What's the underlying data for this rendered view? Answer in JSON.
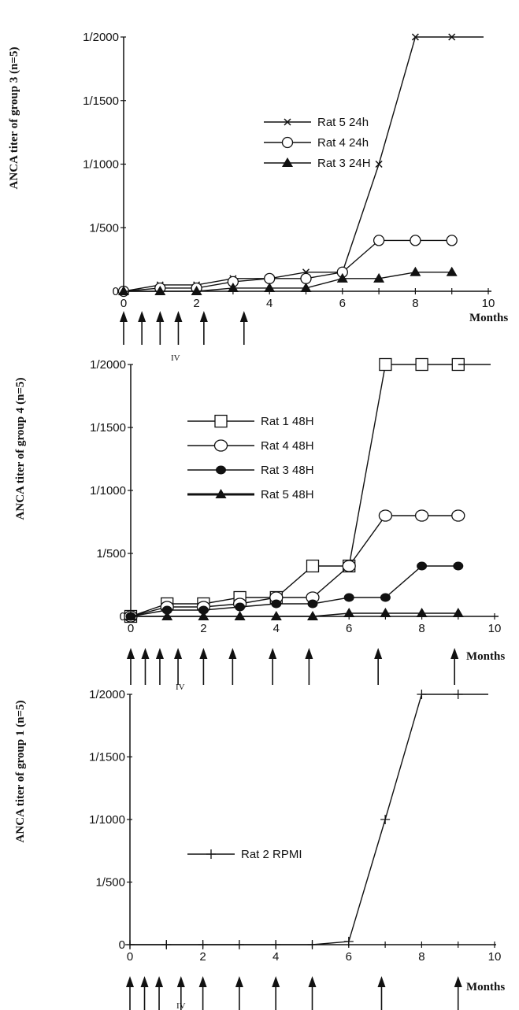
{
  "chart_data": [
    {
      "type": "line",
      "panel": "group3",
      "ylabel": "ANCA titer of group 3 (n=5)",
      "xlabel": "Months",
      "xlim": [
        0,
        10
      ],
      "xticks": [
        0,
        2,
        4,
        6,
        8,
        10
      ],
      "ylim": [
        0,
        2000
      ],
      "yticks": [
        {
          "value": 0,
          "label": "0"
        },
        {
          "value": 500,
          "label": "1/500"
        },
        {
          "value": 1000,
          "label": "1/1000"
        },
        {
          "value": 1500,
          "label": "1/1500"
        },
        {
          "value": 2000,
          "label": "1/2000"
        }
      ],
      "series": [
        {
          "name": "Rat 5 24h",
          "marker": "x",
          "x": [
            0,
            1,
            2,
            3,
            4,
            5,
            6,
            7,
            8,
            9
          ],
          "values": [
            0,
            50,
            50,
            100,
            100,
            150,
            150,
            1000,
            2000,
            2000
          ]
        },
        {
          "name": "Rat 4 24h",
          "marker": "open-circle",
          "x": [
            0,
            1,
            2,
            3,
            4,
            5,
            6,
            7,
            8,
            9
          ],
          "values": [
            0,
            25,
            25,
            75,
            100,
            100,
            150,
            400,
            400,
            400
          ]
        },
        {
          "name": "Rat 3 24H",
          "marker": "filled-triangle",
          "x": [
            0,
            1,
            2,
            3,
            4,
            5,
            6,
            7,
            8,
            9
          ],
          "values": [
            0,
            0,
            0,
            25,
            25,
            25,
            100,
            100,
            150,
            150
          ]
        }
      ],
      "legend": "center",
      "arrows_x": [
        0,
        0.5,
        1,
        1.5,
        2.2,
        3.3
      ],
      "annotation": "IV"
    },
    {
      "type": "line",
      "panel": "group4",
      "ylabel": "ANCA titer of group 4 (n=5)",
      "xlabel": "Months",
      "xlim": [
        0,
        10
      ],
      "xticks": [
        0,
        2,
        4,
        6,
        8,
        10
      ],
      "ylim": [
        0,
        2000
      ],
      "yticks": [
        {
          "value": 0,
          "label": "0"
        },
        {
          "value": 500,
          "label": "1/500"
        },
        {
          "value": 1000,
          "label": "1/1000"
        },
        {
          "value": 1500,
          "label": "1/1500"
        },
        {
          "value": 2000,
          "label": "1/2000"
        }
      ],
      "series": [
        {
          "name": "Rat 1 48H",
          "marker": "open-square",
          "x": [
            0,
            1,
            2,
            3,
            4,
            5,
            6,
            7,
            8,
            9
          ],
          "values": [
            0,
            100,
            100,
            150,
            150,
            400,
            400,
            2000,
            2000,
            2000
          ]
        },
        {
          "name": "Rat 4 48H",
          "marker": "open-ellipse",
          "x": [
            0,
            1,
            2,
            3,
            4,
            5,
            6,
            7,
            8,
            9
          ],
          "values": [
            0,
            75,
            75,
            100,
            150,
            150,
            400,
            800,
            800,
            800
          ]
        },
        {
          "name": "Rat 3 48H",
          "marker": "filled-circle",
          "x": [
            0,
            1,
            2,
            3,
            4,
            5,
            6,
            7,
            8,
            9
          ],
          "values": [
            0,
            50,
            50,
            75,
            100,
            100,
            150,
            150,
            400,
            400
          ]
        },
        {
          "name": "Rat 5 48H",
          "marker": "filled-triangle",
          "x": [
            0,
            1,
            2,
            3,
            4,
            5,
            6,
            7,
            8,
            9
          ],
          "values": [
            0,
            0,
            0,
            0,
            0,
            0,
            25,
            25,
            25,
            25
          ]
        }
      ],
      "legend": "center",
      "arrows_x": [
        0,
        0.4,
        0.8,
        1.3,
        2.0,
        2.8,
        3.9,
        4.9,
        6.8,
        8.9
      ],
      "annotation": "IV"
    },
    {
      "type": "line",
      "panel": "group1",
      "ylabel": "ANCA titer of group 1 (n=5)",
      "xlabel": "Months",
      "xlim": [
        0,
        10
      ],
      "xticks": [
        0,
        2,
        4,
        6,
        8,
        10
      ],
      "ylim": [
        0,
        2000
      ],
      "yticks": [
        {
          "value": 0,
          "label": "0"
        },
        {
          "value": 500,
          "label": "1/500"
        },
        {
          "value": 1000,
          "label": "1/1000"
        },
        {
          "value": 1500,
          "label": "1/1500"
        },
        {
          "value": 2000,
          "label": "1/2000"
        }
      ],
      "series": [
        {
          "name": "Rat 2 RPMI",
          "marker": "plus",
          "x": [
            0,
            1,
            2,
            3,
            4,
            5,
            6,
            7,
            8,
            9
          ],
          "values": [
            0,
            0,
            0,
            0,
            0,
            0,
            25,
            1000,
            2000,
            2000
          ]
        }
      ],
      "legend": "center",
      "arrows_x": [
        0,
        0.4,
        0.8,
        1.4,
        2.0,
        3.0,
        4.0,
        5.0,
        6.9,
        9.0
      ],
      "annotation": "IV"
    }
  ]
}
